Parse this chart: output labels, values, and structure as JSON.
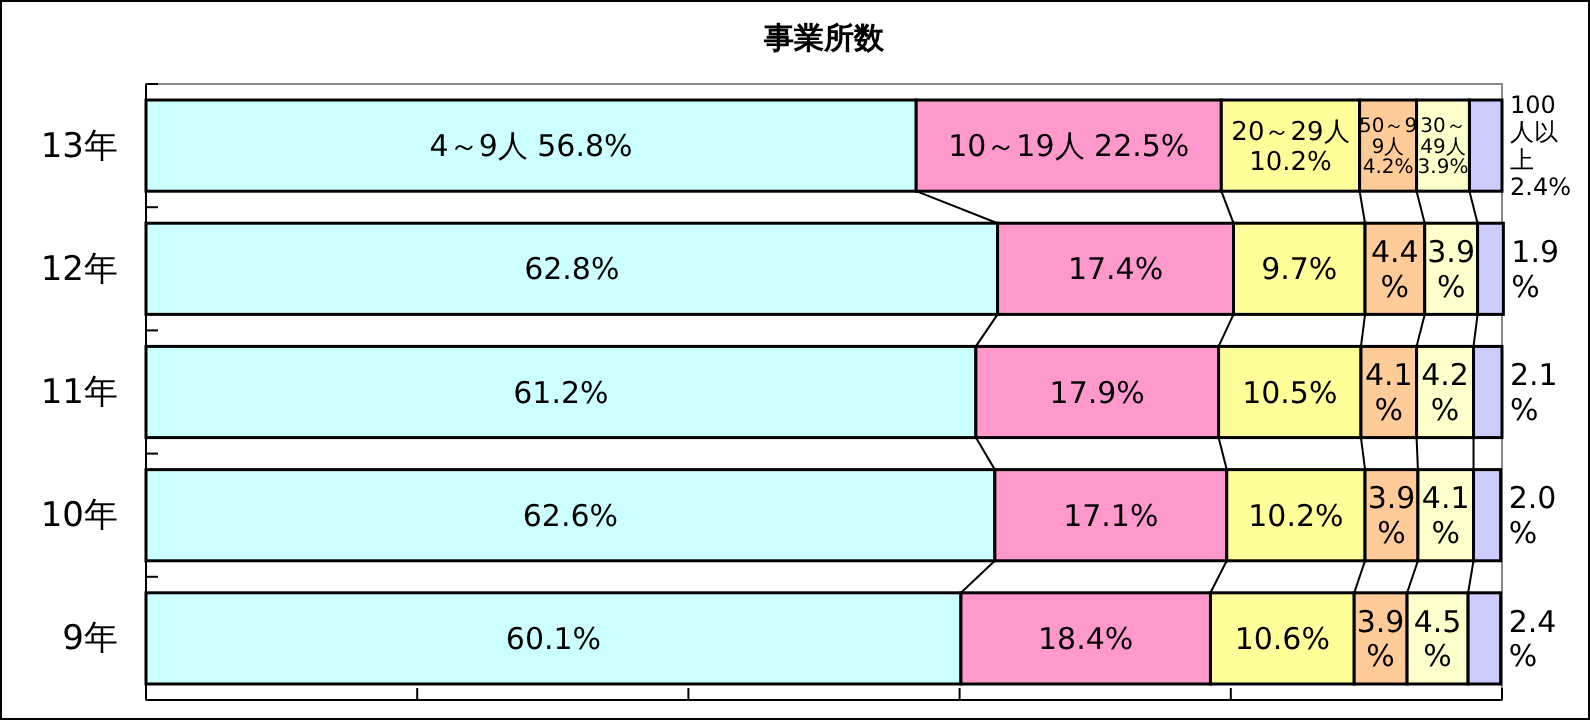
{
  "chart_data": {
    "type": "bar",
    "title": "事業所数",
    "orientation": "horizontal",
    "stacked": true,
    "tick_labels": "y",
    "categories": [
      "13年",
      "12年",
      "11年",
      "10年",
      "9年"
    ],
    "xlim": [
      0,
      100
    ],
    "xticks": [
      {
        "value": 0,
        "label": null
      },
      {
        "value": 20,
        "label": null
      },
      {
        "value": 40,
        "label": null
      },
      {
        "value": 60,
        "label": null
      },
      {
        "value": 80,
        "label": null
      },
      {
        "value": 100,
        "label": null
      }
    ],
    "series": [
      {
        "color": "#ccffff",
        "values": [
          56.8,
          62.8,
          61.2,
          62.6,
          60.1
        ],
        "value_labels": [
          "4～9人 56.8%",
          "62.8%",
          "61.2%",
          "62.6%",
          "60.1%"
        ]
      },
      {
        "color": "#ff99cc",
        "values": [
          22.5,
          17.4,
          17.9,
          17.1,
          18.4
        ],
        "value_labels": [
          "10～19人 22.5%",
          "17.4%",
          "17.9%",
          "17.1%",
          "18.4%"
        ]
      },
      {
        "color": "#ffff99",
        "values": [
          10.2,
          9.7,
          10.5,
          10.2,
          10.6
        ],
        "value_labels": [
          "20～29人 10.2%",
          "9.7%",
          "10.5%",
          "10.2%",
          "10.6%"
        ]
      },
      {
        "color": "#ffcc99",
        "values": [
          4.2,
          4.4,
          4.1,
          3.9,
          3.9
        ],
        "value_labels": [
          "50～99人 4.2%",
          "4.4%",
          "4.1%",
          "3.9%",
          "3.9%"
        ]
      },
      {
        "color": "#ffffcc",
        "values": [
          3.9,
          3.9,
          4.2,
          4.1,
          4.5
        ],
        "value_labels": [
          "30～49人 3.9%",
          "3.9%",
          "4.2%",
          "4.1%",
          "4.5%"
        ]
      },
      {
        "color": "#ccccff",
        "values": [
          2.4,
          1.9,
          2.1,
          2.0,
          2.4
        ],
        "value_labels": [
          "100人以上 2.4%",
          "1.9%",
          "2.1%",
          "2.0%",
          "2.4%"
        ]
      }
    ]
  }
}
